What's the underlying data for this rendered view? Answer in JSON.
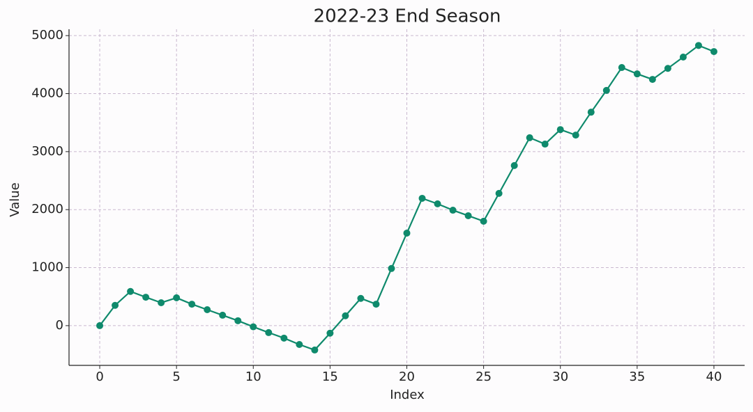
{
  "chart_data": {
    "type": "line",
    "title": "2022-23 End Season",
    "xlabel": "Index",
    "ylabel": "Value",
    "x": [
      0,
      1,
      2,
      3,
      4,
      5,
      6,
      7,
      8,
      9,
      10,
      11,
      12,
      13,
      14,
      15,
      16,
      17,
      18,
      19,
      20,
      21,
      22,
      23,
      24,
      25,
      26,
      27,
      28,
      29,
      30,
      31,
      32,
      33,
      34,
      35,
      36,
      37,
      38,
      39,
      40
    ],
    "series": [
      {
        "color": "#0f8a6c",
        "values": [
          0,
          350,
          590,
          490,
          395,
          480,
          370,
          275,
          180,
          85,
          -20,
          -120,
          -215,
          -325,
          -420,
          -130,
          170,
          470,
          370,
          985,
          1595,
          2195,
          2100,
          1990,
          1895,
          1800,
          2280,
          2760,
          3240,
          3130,
          3380,
          3285,
          3680,
          4055,
          4450,
          4340,
          4245,
          4435,
          4630,
          4830,
          4725
        ]
      }
    ],
    "xlim": [
      -2,
      42
    ],
    "ylim": [
      -685,
      5110
    ],
    "xticks": [
      0,
      5,
      10,
      15,
      20,
      25,
      30,
      35,
      40
    ],
    "yticks": [
      0,
      1000,
      2000,
      3000,
      4000,
      5000
    ],
    "grid": true
  }
}
